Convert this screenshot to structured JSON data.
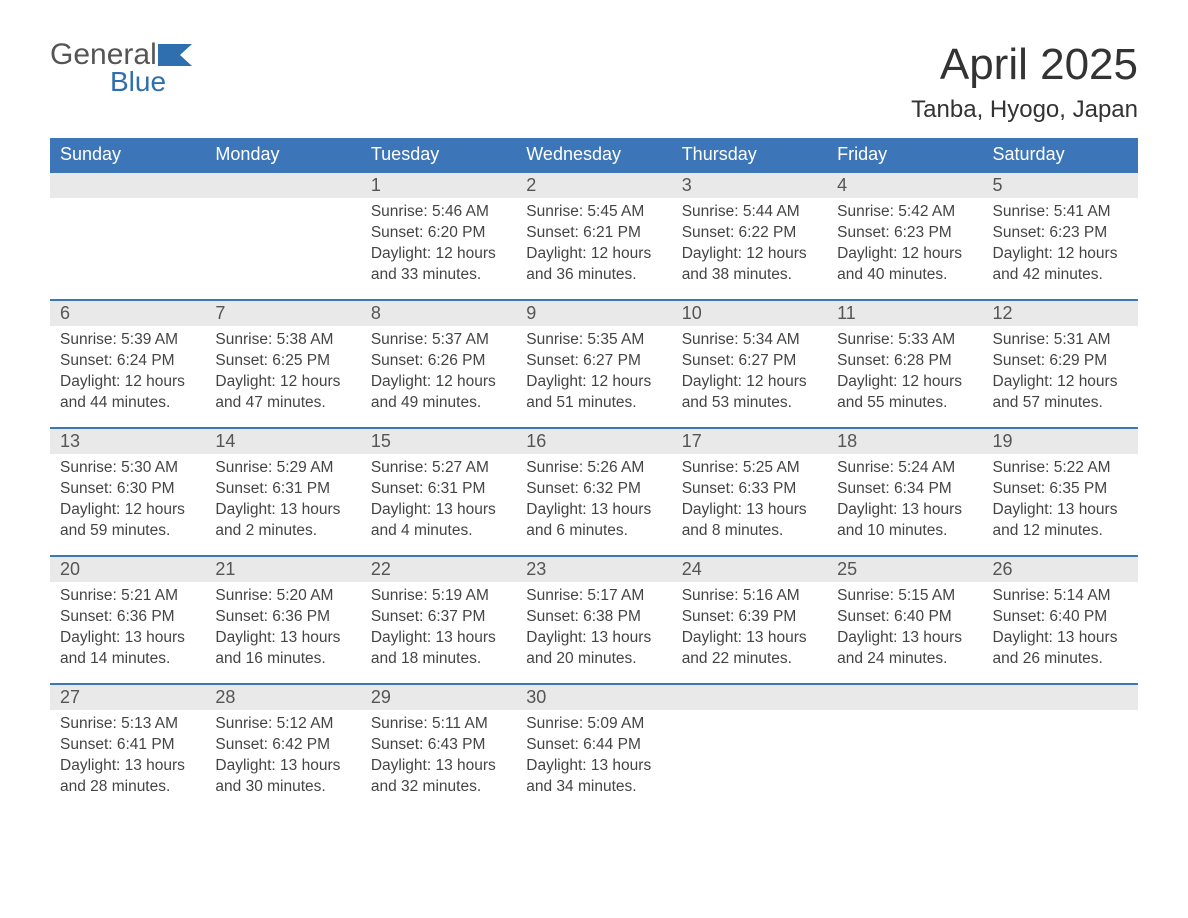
{
  "brand": {
    "text1": "General",
    "text2": "Blue",
    "flag_color": "#2f6fb0",
    "gray": "#555555"
  },
  "title": "April 2025",
  "location": "Tanba, Hyogo, Japan",
  "colors": {
    "header_bg": "#3d76b8",
    "header_text": "#ffffff",
    "daynum_bg": "#e9e9e9",
    "daynum_text": "#555555",
    "body_text": "#444444",
    "row_border": "#3d76b8",
    "page_bg": "#ffffff"
  },
  "typography": {
    "month_title_fontsize": 44,
    "location_fontsize": 24,
    "weekday_fontsize": 18,
    "daynum_fontsize": 18,
    "cell_fontsize": 15.5
  },
  "weekdays": [
    "Sunday",
    "Monday",
    "Tuesday",
    "Wednesday",
    "Thursday",
    "Friday",
    "Saturday"
  ],
  "weeks": [
    [
      null,
      null,
      {
        "n": "1",
        "sunrise": "Sunrise: 5:46 AM",
        "sunset": "Sunset: 6:20 PM",
        "daylight": "Daylight: 12 hours and 33 minutes."
      },
      {
        "n": "2",
        "sunrise": "Sunrise: 5:45 AM",
        "sunset": "Sunset: 6:21 PM",
        "daylight": "Daylight: 12 hours and 36 minutes."
      },
      {
        "n": "3",
        "sunrise": "Sunrise: 5:44 AM",
        "sunset": "Sunset: 6:22 PM",
        "daylight": "Daylight: 12 hours and 38 minutes."
      },
      {
        "n": "4",
        "sunrise": "Sunrise: 5:42 AM",
        "sunset": "Sunset: 6:23 PM",
        "daylight": "Daylight: 12 hours and 40 minutes."
      },
      {
        "n": "5",
        "sunrise": "Sunrise: 5:41 AM",
        "sunset": "Sunset: 6:23 PM",
        "daylight": "Daylight: 12 hours and 42 minutes."
      }
    ],
    [
      {
        "n": "6",
        "sunrise": "Sunrise: 5:39 AM",
        "sunset": "Sunset: 6:24 PM",
        "daylight": "Daylight: 12 hours and 44 minutes."
      },
      {
        "n": "7",
        "sunrise": "Sunrise: 5:38 AM",
        "sunset": "Sunset: 6:25 PM",
        "daylight": "Daylight: 12 hours and 47 minutes."
      },
      {
        "n": "8",
        "sunrise": "Sunrise: 5:37 AM",
        "sunset": "Sunset: 6:26 PM",
        "daylight": "Daylight: 12 hours and 49 minutes."
      },
      {
        "n": "9",
        "sunrise": "Sunrise: 5:35 AM",
        "sunset": "Sunset: 6:27 PM",
        "daylight": "Daylight: 12 hours and 51 minutes."
      },
      {
        "n": "10",
        "sunrise": "Sunrise: 5:34 AM",
        "sunset": "Sunset: 6:27 PM",
        "daylight": "Daylight: 12 hours and 53 minutes."
      },
      {
        "n": "11",
        "sunrise": "Sunrise: 5:33 AM",
        "sunset": "Sunset: 6:28 PM",
        "daylight": "Daylight: 12 hours and 55 minutes."
      },
      {
        "n": "12",
        "sunrise": "Sunrise: 5:31 AM",
        "sunset": "Sunset: 6:29 PM",
        "daylight": "Daylight: 12 hours and 57 minutes."
      }
    ],
    [
      {
        "n": "13",
        "sunrise": "Sunrise: 5:30 AM",
        "sunset": "Sunset: 6:30 PM",
        "daylight": "Daylight: 12 hours and 59 minutes."
      },
      {
        "n": "14",
        "sunrise": "Sunrise: 5:29 AM",
        "sunset": "Sunset: 6:31 PM",
        "daylight": "Daylight: 13 hours and 2 minutes."
      },
      {
        "n": "15",
        "sunrise": "Sunrise: 5:27 AM",
        "sunset": "Sunset: 6:31 PM",
        "daylight": "Daylight: 13 hours and 4 minutes."
      },
      {
        "n": "16",
        "sunrise": "Sunrise: 5:26 AM",
        "sunset": "Sunset: 6:32 PM",
        "daylight": "Daylight: 13 hours and 6 minutes."
      },
      {
        "n": "17",
        "sunrise": "Sunrise: 5:25 AM",
        "sunset": "Sunset: 6:33 PM",
        "daylight": "Daylight: 13 hours and 8 minutes."
      },
      {
        "n": "18",
        "sunrise": "Sunrise: 5:24 AM",
        "sunset": "Sunset: 6:34 PM",
        "daylight": "Daylight: 13 hours and 10 minutes."
      },
      {
        "n": "19",
        "sunrise": "Sunrise: 5:22 AM",
        "sunset": "Sunset: 6:35 PM",
        "daylight": "Daylight: 13 hours and 12 minutes."
      }
    ],
    [
      {
        "n": "20",
        "sunrise": "Sunrise: 5:21 AM",
        "sunset": "Sunset: 6:36 PM",
        "daylight": "Daylight: 13 hours and 14 minutes."
      },
      {
        "n": "21",
        "sunrise": "Sunrise: 5:20 AM",
        "sunset": "Sunset: 6:36 PM",
        "daylight": "Daylight: 13 hours and 16 minutes."
      },
      {
        "n": "22",
        "sunrise": "Sunrise: 5:19 AM",
        "sunset": "Sunset: 6:37 PM",
        "daylight": "Daylight: 13 hours and 18 minutes."
      },
      {
        "n": "23",
        "sunrise": "Sunrise: 5:17 AM",
        "sunset": "Sunset: 6:38 PM",
        "daylight": "Daylight: 13 hours and 20 minutes."
      },
      {
        "n": "24",
        "sunrise": "Sunrise: 5:16 AM",
        "sunset": "Sunset: 6:39 PM",
        "daylight": "Daylight: 13 hours and 22 minutes."
      },
      {
        "n": "25",
        "sunrise": "Sunrise: 5:15 AM",
        "sunset": "Sunset: 6:40 PM",
        "daylight": "Daylight: 13 hours and 24 minutes."
      },
      {
        "n": "26",
        "sunrise": "Sunrise: 5:14 AM",
        "sunset": "Sunset: 6:40 PM",
        "daylight": "Daylight: 13 hours and 26 minutes."
      }
    ],
    [
      {
        "n": "27",
        "sunrise": "Sunrise: 5:13 AM",
        "sunset": "Sunset: 6:41 PM",
        "daylight": "Daylight: 13 hours and 28 minutes."
      },
      {
        "n": "28",
        "sunrise": "Sunrise: 5:12 AM",
        "sunset": "Sunset: 6:42 PM",
        "daylight": "Daylight: 13 hours and 30 minutes."
      },
      {
        "n": "29",
        "sunrise": "Sunrise: 5:11 AM",
        "sunset": "Sunset: 6:43 PM",
        "daylight": "Daylight: 13 hours and 32 minutes."
      },
      {
        "n": "30",
        "sunrise": "Sunrise: 5:09 AM",
        "sunset": "Sunset: 6:44 PM",
        "daylight": "Daylight: 13 hours and 34 minutes."
      },
      null,
      null,
      null
    ]
  ]
}
